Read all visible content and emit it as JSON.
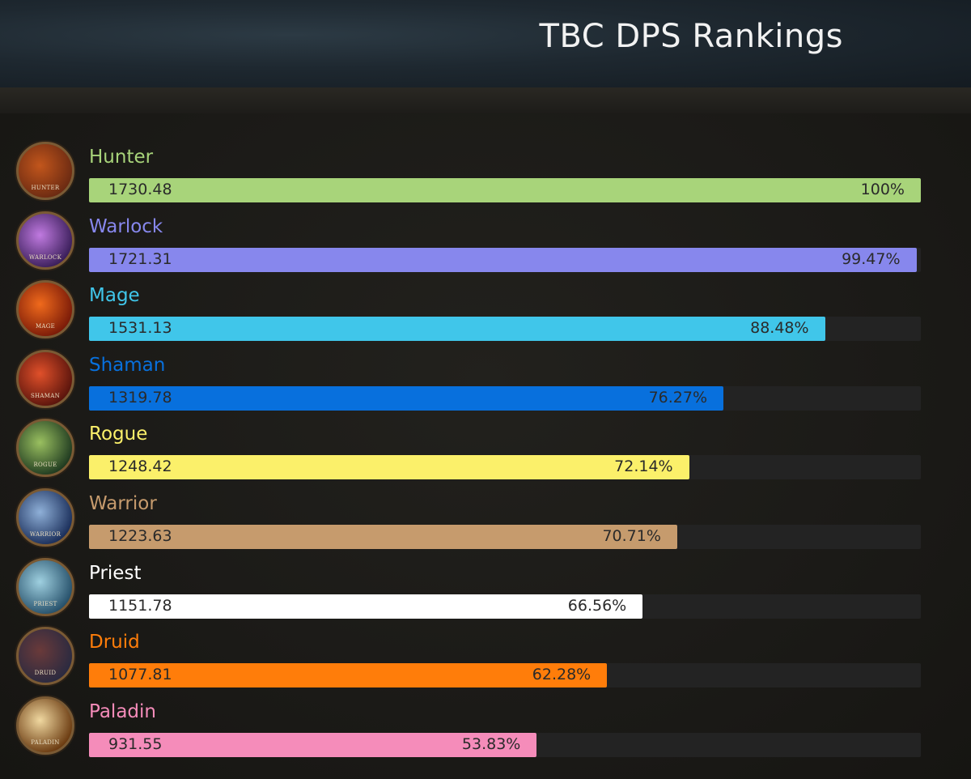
{
  "header": {
    "title": "TBC DPS Rankings"
  },
  "chart_data": {
    "type": "bar",
    "orientation": "horizontal",
    "title": "TBC DPS Rankings",
    "xlim": [
      0,
      100
    ],
    "categories": [
      "Hunter",
      "Warlock",
      "Mage",
      "Shaman",
      "Rogue",
      "Warrior",
      "Priest",
      "Druid",
      "Paladin"
    ],
    "values": [
      1730.48,
      1721.31,
      1531.13,
      1319.78,
      1248.42,
      1223.63,
      1151.78,
      1077.81,
      931.55
    ],
    "percents": [
      "100%",
      "99.47%",
      "88.48%",
      "76.27%",
      "72.14%",
      "70.71%",
      "66.56%",
      "62.28%",
      "53.83%"
    ],
    "percent_values": [
      100,
      99.47,
      88.48,
      76.27,
      72.14,
      70.71,
      66.56,
      62.28,
      53.83
    ],
    "colors": [
      "#a8d47a",
      "#8787ed",
      "#40c6ea",
      "#0870dd",
      "#fbf06a",
      "#c69b6d",
      "#ffffff",
      "#ff7d0a",
      "#f58cba"
    ],
    "icons": [
      "hunter-class-icon",
      "warlock-class-icon",
      "mage-class-icon",
      "shaman-class-icon",
      "rogue-class-icon",
      "warrior-class-icon",
      "priest-class-icon",
      "druid-class-icon",
      "paladin-class-icon"
    ],
    "icon_captions": [
      "HUNTER",
      "WARLOCK",
      "MAGE",
      "SHAMAN",
      "ROGUE",
      "WARRIOR",
      "PRIEST",
      "DRUID",
      "PALADIN"
    ]
  }
}
